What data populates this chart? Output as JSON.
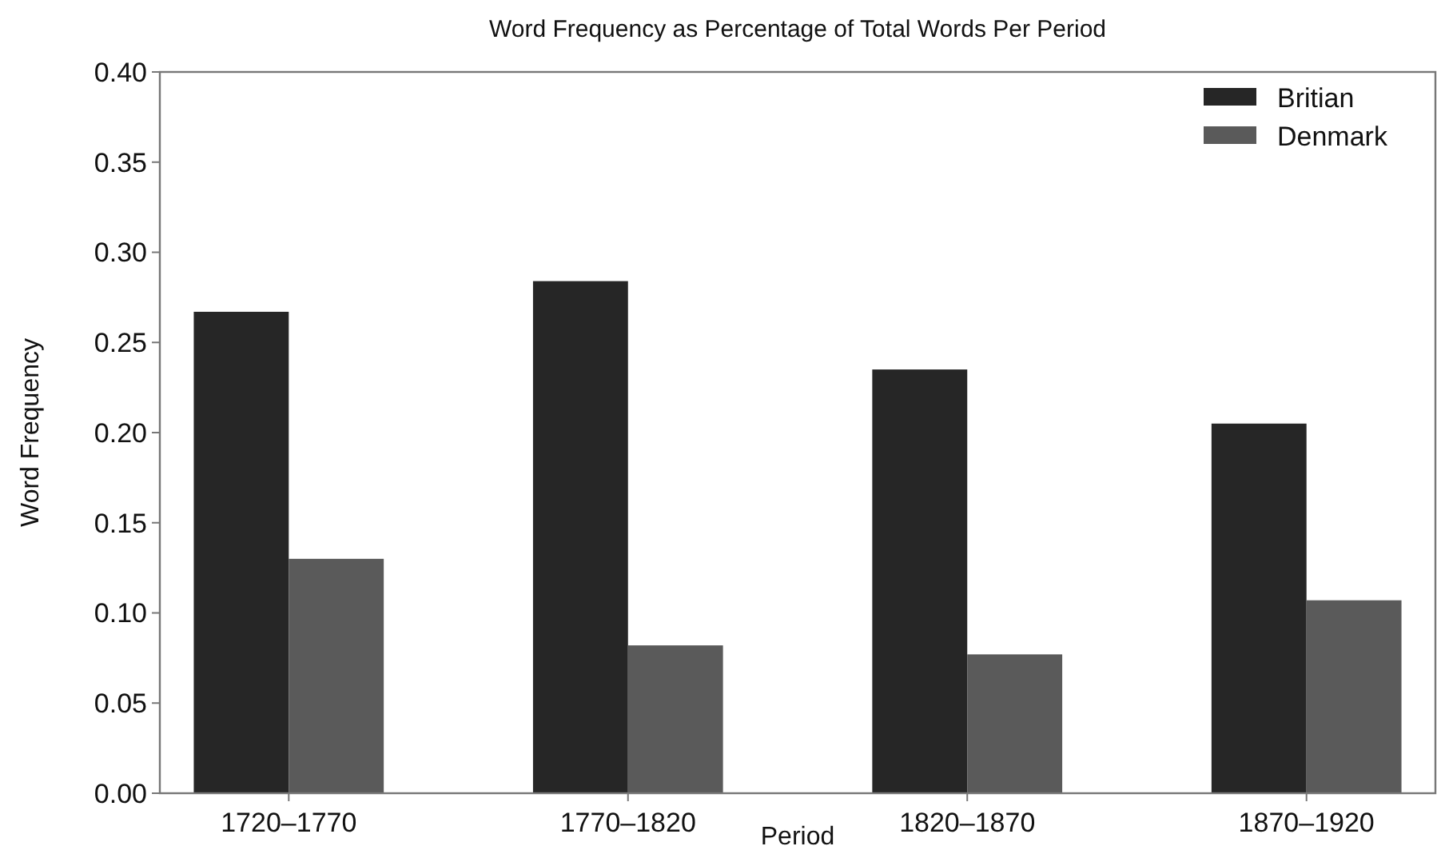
{
  "chart_data": {
    "type": "bar",
    "title": "Word Frequency as Percentage of Total Words Per Period",
    "xlabel": "Period",
    "ylabel": "Word Frequency",
    "categories": [
      "1720–1770",
      "1770–1820",
      "1820–1870",
      "1870–1920"
    ],
    "series": [
      {
        "name": "Britian",
        "color": "#262626",
        "values": [
          0.267,
          0.284,
          0.235,
          0.205
        ]
      },
      {
        "name": "Denmark",
        "color": "#5a5a5a",
        "values": [
          0.13,
          0.082,
          0.077,
          0.107
        ]
      }
    ],
    "ylim": [
      0,
      0.4
    ],
    "yticks": [
      {
        "value": 0,
        "label": "0.00"
      },
      {
        "value": 0.05,
        "label": "0.05"
      },
      {
        "value": 0.1,
        "label": "0.10"
      },
      {
        "value": 0.15,
        "label": "0.15"
      },
      {
        "value": 0.2,
        "label": "0.20"
      },
      {
        "value": 0.25,
        "label": "0.25"
      },
      {
        "value": 0.3,
        "label": "0.30"
      },
      {
        "value": 0.35,
        "label": "0.35"
      },
      {
        "value": 0.4,
        "label": "0.40"
      }
    ],
    "legend": "top right",
    "grid": false
  }
}
